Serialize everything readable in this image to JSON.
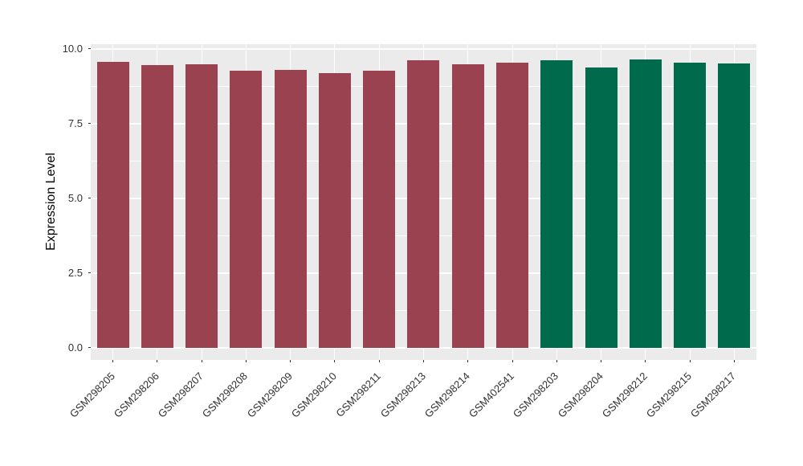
{
  "chart_data": {
    "type": "bar",
    "title": "",
    "xlabel": "",
    "ylabel": "Expression Level",
    "ylim": [
      0,
      10
    ],
    "grid": true,
    "legend": "none",
    "panel_bg": "#EBEBEB",
    "grid_color": "#FFFFFF",
    "yticks": {
      "values": [
        0,
        2.5,
        5,
        7.5,
        10
      ],
      "labels": [
        "0.0",
        "2.5",
        "5.0",
        "7.5",
        "10.0"
      ]
    },
    "minor_tick_values": [
      1.25,
      3.75,
      6.25,
      8.75
    ],
    "categories": [
      "GSM298205",
      "GSM298206",
      "GSM298207",
      "GSM298208",
      "GSM298209",
      "GSM298210",
      "GSM298211",
      "GSM298213",
      "GSM298214",
      "GSM402541",
      "GSM298203",
      "GSM298204",
      "GSM298212",
      "GSM298215",
      "GSM298217"
    ],
    "values": [
      9.55,
      9.46,
      9.47,
      9.25,
      9.28,
      9.19,
      9.27,
      9.62,
      9.47,
      9.53,
      9.62,
      9.38,
      9.64,
      9.54,
      9.5
    ],
    "groups": [
      "A",
      "A",
      "A",
      "A",
      "A",
      "A",
      "A",
      "A",
      "A",
      "A",
      "B",
      "B",
      "B",
      "B",
      "B"
    ],
    "group_colors": {
      "A": "#9A4250",
      "B": "#006B4C"
    }
  }
}
